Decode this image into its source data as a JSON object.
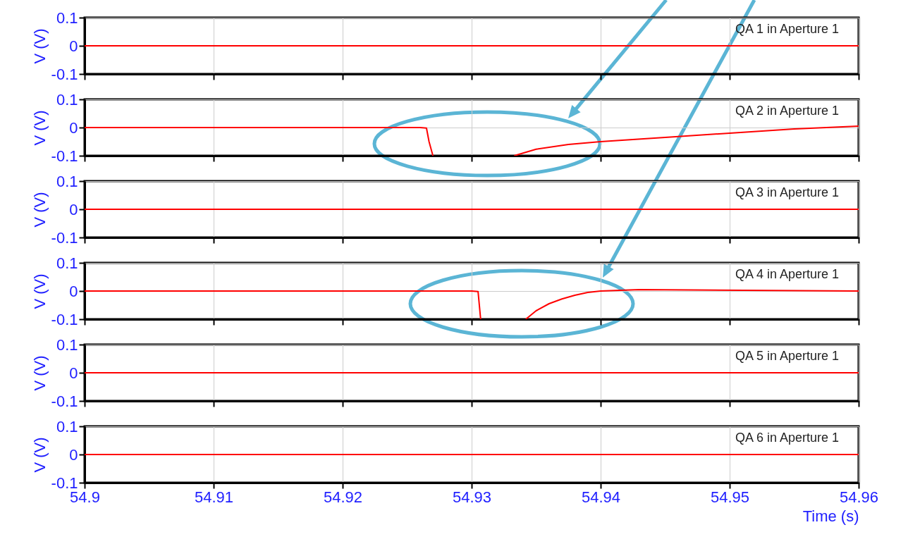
{
  "chart_data": [
    {
      "type": "line",
      "ylabel": "V (V)",
      "annotations": [
        "QA 1 in Aperture 1"
      ],
      "x": [
        54.9,
        54.96
      ],
      "series": [
        {
          "color": "#ff0000",
          "values": [
            0,
            0
          ]
        }
      ],
      "xlim": [
        54.9,
        54.96
      ],
      "xticks": [
        54.9,
        54.91,
        54.92,
        54.93,
        54.94,
        54.95,
        54.96
      ],
      "ylim": [
        -0.1,
        0.1
      ],
      "yticks": [
        -0.1,
        0,
        0.1
      ],
      "grid": true,
      "tick_labels": "y"
    },
    {
      "type": "line",
      "ylabel": "V (V)",
      "annotations": [
        "QA 2 in Aperture 1"
      ],
      "x": [
        54.9,
        54.926,
        54.9265,
        54.9267,
        54.927,
        54.93,
        54.9333,
        54.935,
        54.9375,
        54.94,
        54.945,
        54.95,
        54.955,
        54.96
      ],
      "series": [
        {
          "color": "#ff0000",
          "values": [
            0,
            0,
            -0.002,
            -0.05,
            -0.1,
            null,
            -0.1,
            -0.077,
            -0.06,
            -0.05,
            -0.035,
            -0.02,
            -0.005,
            0.005
          ]
        }
      ],
      "xlim": [
        54.9,
        54.96
      ],
      "xticks": [
        54.9,
        54.91,
        54.92,
        54.93,
        54.94,
        54.95,
        54.96
      ],
      "ylim": [
        -0.1,
        0.1
      ],
      "yticks": [
        -0.1,
        0,
        0.1
      ],
      "grid": true,
      "tick_labels": "y"
    },
    {
      "type": "line",
      "ylabel": "V (V)",
      "annotations": [
        "QA 3 in Aperture 1"
      ],
      "x": [
        54.9,
        54.96
      ],
      "series": [
        {
          "color": "#ff0000",
          "values": [
            0,
            0
          ]
        }
      ],
      "xlim": [
        54.9,
        54.96
      ],
      "xticks": [
        54.9,
        54.91,
        54.92,
        54.93,
        54.94,
        54.95,
        54.96
      ],
      "ylim": [
        -0.1,
        0.1
      ],
      "yticks": [
        -0.1,
        0,
        0.1
      ],
      "grid": true,
      "tick_labels": "y"
    },
    {
      "type": "line",
      "ylabel": "V (V)",
      "annotations": [
        "QA 4 in Aperture 1"
      ],
      "x": [
        54.9,
        54.93,
        54.9305,
        54.9307,
        54.932,
        54.9342,
        54.935,
        54.936,
        54.937,
        54.938,
        54.939,
        54.94,
        54.943,
        54.96
      ],
      "series": [
        {
          "color": "#ff0000",
          "values": [
            0,
            0,
            -0.002,
            -0.1,
            null,
            -0.1,
            -0.07,
            -0.045,
            -0.028,
            -0.015,
            -0.005,
            0,
            0.005,
            0
          ]
        }
      ],
      "xlim": [
        54.9,
        54.96
      ],
      "xticks": [
        54.9,
        54.91,
        54.92,
        54.93,
        54.94,
        54.95,
        54.96
      ],
      "ylim": [
        -0.1,
        0.1
      ],
      "yticks": [
        -0.1,
        0,
        0.1
      ],
      "grid": true,
      "tick_labels": "y"
    },
    {
      "type": "line",
      "ylabel": "V (V)",
      "annotations": [
        "QA 5 in Aperture 1"
      ],
      "x": [
        54.9,
        54.96
      ],
      "series": [
        {
          "color": "#ff0000",
          "values": [
            0,
            0
          ]
        }
      ],
      "xlim": [
        54.9,
        54.96
      ],
      "xticks": [
        54.9,
        54.91,
        54.92,
        54.93,
        54.94,
        54.95,
        54.96
      ],
      "ylim": [
        -0.1,
        0.1
      ],
      "yticks": [
        -0.1,
        0,
        0.1
      ],
      "grid": true,
      "tick_labels": "y"
    },
    {
      "type": "line",
      "ylabel": "V (V)",
      "xlabel": "Time (s)",
      "annotations": [
        "QA 6 in Aperture 1"
      ],
      "x": [
        54.9,
        54.96
      ],
      "series": [
        {
          "color": "#ff0000",
          "values": [
            0,
            0
          ]
        }
      ],
      "xlim": [
        54.9,
        54.96
      ],
      "xticks": [
        54.9,
        54.91,
        54.92,
        54.93,
        54.94,
        54.95,
        54.96
      ],
      "ylim": [
        -0.1,
        0.1
      ],
      "yticks": [
        -0.1,
        0,
        0.1
      ],
      "grid": true
    }
  ]
}
